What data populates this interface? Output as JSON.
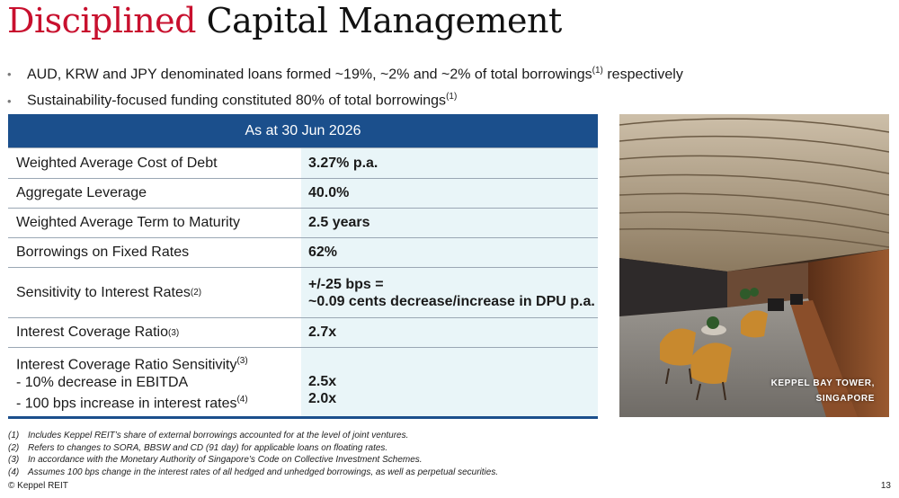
{
  "title": {
    "accent": "Disciplined",
    "rest": "Capital Management"
  },
  "bullets": [
    {
      "text": "AUD, KRW and JPY denominated loans formed ~19%, ~2% and ~2% of total borrowings",
      "sup": "(1)",
      "after": " respectively"
    },
    {
      "text": "Sustainability-focused funding constituted 80% of total borrowings",
      "sup": "(1)",
      "after": ""
    }
  ],
  "table": {
    "header": "As at 30 Jun 2026",
    "rows": [
      {
        "label": "Weighted Average Cost of Debt",
        "value": "3.27% p.a."
      },
      {
        "label": "Aggregate Leverage",
        "value": "40.0%"
      },
      {
        "label": "Weighted Average Term to Maturity",
        "value": "2.5 years"
      },
      {
        "label": "Borrowings on Fixed Rates",
        "value": "62%"
      },
      {
        "label": "Sensitivity to Interest Rates",
        "sup": "(2)",
        "value_line1": "+/-25 bps =",
        "value_line2": "~0.09 cents decrease/increase in DPU p.a."
      },
      {
        "label": "Interest Coverage Ratio",
        "sup": "(3)",
        "value": "2.7x"
      },
      {
        "label": "Interest Coverage Ratio Sensitivity",
        "sup": "(3)",
        "sub1": "-  10% decrease in EBITDA",
        "sub2": "-  100 bps increase in interest rates",
        "sub2_sup": "(4)",
        "value1": "2.5x",
        "value2": "2.0x"
      }
    ]
  },
  "photo": {
    "caption_line1": "KEPPEL BAY TOWER,",
    "caption_line2": "SINGAPORE"
  },
  "footnotes": [
    {
      "num": "(1)",
      "text": "Includes Keppel REIT’s share of external borrowings accounted for at the level of joint ventures."
    },
    {
      "num": "(2)",
      "text": "Refers to changes to SORA, BBSW and CD (91 day) for applicable loans on floating rates."
    },
    {
      "num": "(3)",
      "text": "In accordance with the Monetary Authority of Singapore’s Code on Collective Investment Schemes."
    },
    {
      "num": "(4)",
      "text": "Assumes 100 bps change in the interest rates of all hedged and unhedged borrowings, as well as perpetual securities."
    }
  ],
  "footer": {
    "copyright": "© Keppel REIT",
    "page": "13"
  },
  "colors": {
    "accent_red": "#c8102e",
    "header_blue": "#1b4f8c",
    "value_bg": "#e9f5f8"
  }
}
